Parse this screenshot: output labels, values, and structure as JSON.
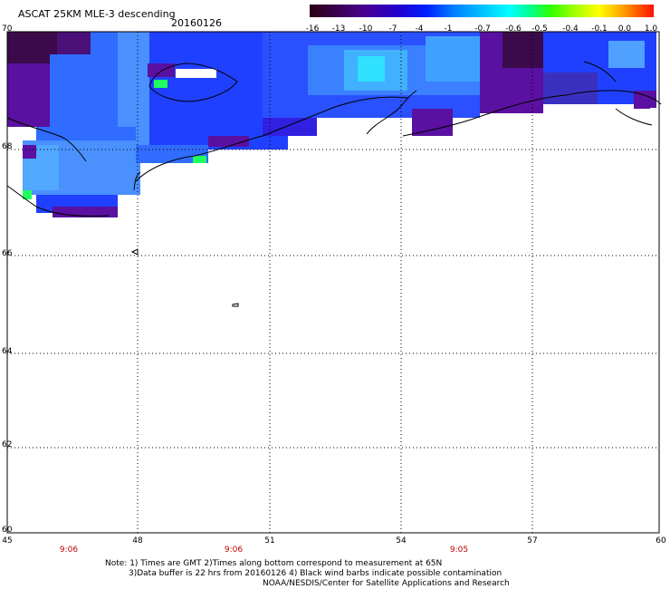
{
  "header": {
    "title": "ASCAT 25KM MLE-3 descending",
    "date": "20160126"
  },
  "colorbar": {
    "labels": [
      "-16",
      "-13",
      "-10",
      "-7",
      "-4",
      "-1",
      "-0.7",
      "-0.6",
      "-0.5",
      "-0.4",
      "-0.1",
      "0.0",
      "1.0"
    ]
  },
  "axes": {
    "y_ticks": [
      "70",
      "68",
      "66",
      "64",
      "62",
      "60"
    ],
    "x_ticks": [
      "45",
      "48",
      "51",
      "54",
      "57",
      "60"
    ]
  },
  "times": [
    "9:06",
    "9:06",
    "9:05"
  ],
  "notes": {
    "line1": "Note: 1) Times are GMT 2)Times along bottom correspond to measurement at 65N",
    "line2": "3)Data buffer is 22 hrs from 20160126 4) Black wind barbs indicate possible contamination",
    "line3": "NOAA/NESDIS/Center for Satellite Applications and Research"
  },
  "colors": {
    "deep_purple": "#3a0a4a",
    "purple": "#5a10a0",
    "blue": "#2040ff",
    "mid_blue": "#2f6cff",
    "light_blue": "#50a0ff",
    "cyan": "#30e0ff",
    "green": "#20ff60"
  }
}
